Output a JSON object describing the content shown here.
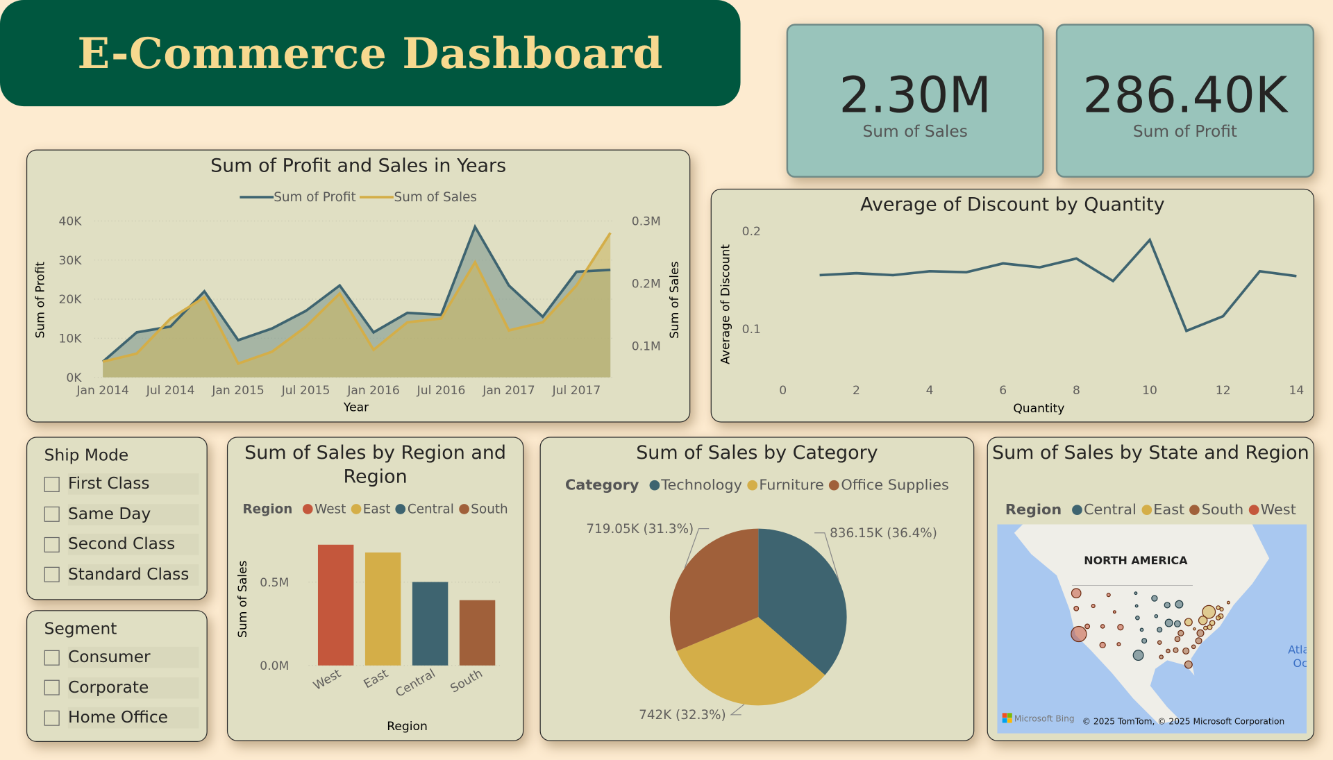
{
  "header": {
    "title": "E-Commerce Dashboard"
  },
  "kpis": [
    {
      "value": "2.30M",
      "label": "Sum of Sales"
    },
    {
      "value": "286.40K",
      "label": "Sum of Profit"
    }
  ],
  "colors": {
    "profit": "#3e6470",
    "sales": "#d4ae48",
    "west": "#c4573c",
    "east": "#d4ae48",
    "central": "#3e6470",
    "south": "#a0603a",
    "technology": "#3e6470",
    "furniture": "#d4ae48",
    "office_supplies": "#a0603a",
    "title_bg": "#00573f",
    "title_text": "#f7d98f",
    "kpi_bg": "#99c4bb"
  },
  "slicers": [
    {
      "title": "Ship Mode",
      "items": [
        "First Class",
        "Same Day",
        "Second Class",
        "Standard Class"
      ]
    },
    {
      "title": "Segment",
      "items": [
        "Consumer",
        "Corporate",
        "Home Office"
      ]
    }
  ],
  "chart_data": [
    {
      "type": "line",
      "title": "Sum of Profit and Sales in Years",
      "xlabel": "Year",
      "ylabel": "Sum of Profit",
      "y2label": "Sum of Sales",
      "legend": [
        "Sum of Profit",
        "Sum of Sales"
      ],
      "legend_position": "top",
      "x": [
        "Jan 2014",
        "Apr 2014",
        "Jul 2014",
        "Oct 2014",
        "Jan 2015",
        "Apr 2015",
        "Jul 2015",
        "Oct 2015",
        "Jan 2016",
        "Apr 2016",
        "Jul 2016",
        "Oct 2016",
        "Jan 2017",
        "Apr 2017",
        "Jul 2017",
        "Oct 2017"
      ],
      "xticks": [
        "Jan 2014",
        "Jul 2014",
        "Jan 2015",
        "Jul 2015",
        "Jan 2016",
        "Jul 2016",
        "Jan 2017",
        "Jul 2017"
      ],
      "yticks": [
        "0K",
        "10K",
        "20K",
        "30K",
        "40K"
      ],
      "y2ticks": [
        "0.1M",
        "0.2M",
        "0.3M"
      ],
      "series": [
        {
          "name": "Sum of Profit",
          "axis": "left",
          "unit": "K",
          "values": [
            4,
            11.5,
            13,
            22,
            9.5,
            12.5,
            17,
            23.5,
            11.5,
            16.5,
            16,
            38.5,
            23.5,
            15.5,
            27,
            27.5
          ]
        },
        {
          "name": "Sum of Sales",
          "axis": "right",
          "unit": "M",
          "values": [
            0.075,
            0.088,
            0.144,
            0.178,
            0.072,
            0.091,
            0.131,
            0.184,
            0.094,
            0.138,
            0.144,
            0.234,
            0.125,
            0.138,
            0.197,
            0.281
          ]
        }
      ],
      "ylim": [
        0,
        40
      ],
      "grid": true
    },
    {
      "type": "line",
      "title": "Average of Discount by Quantity",
      "xlabel": "Quantity",
      "ylabel": "Average of Discount",
      "xticks": [
        "0",
        "2",
        "4",
        "6",
        "8",
        "10",
        "12",
        "14"
      ],
      "yticks": [
        "0.1",
        "0.2"
      ],
      "x": [
        1,
        2,
        3,
        4,
        5,
        6,
        7,
        8,
        9,
        10,
        11,
        12,
        13,
        14
      ],
      "values": [
        0.155,
        0.157,
        0.155,
        0.159,
        0.158,
        0.167,
        0.163,
        0.172,
        0.149,
        0.191,
        0.098,
        0.113,
        0.159,
        0.154
      ]
    },
    {
      "type": "bar",
      "title": "Sum of Sales by Region and Region",
      "xlabel": "Region",
      "ylabel": "Sum of Sales",
      "legend_title": "Region",
      "categories": [
        "West",
        "East",
        "Central",
        "South"
      ],
      "values": [
        0.725,
        0.678,
        0.501,
        0.392
      ],
      "unit": "M",
      "yticks": [
        "0.0M",
        "0.5M"
      ]
    },
    {
      "type": "pie",
      "title": "Sum of Sales by Category",
      "legend_title": "Category",
      "categories": [
        "Technology",
        "Furniture",
        "Office Supplies"
      ],
      "values": [
        836.15,
        742,
        719.05
      ],
      "labels": [
        "836.15K (36.4%)",
        "742K (32.3%)",
        "719.05K (31.3%)"
      ]
    }
  ],
  "map": {
    "title": "Sum of Sales by State and Region",
    "legend_title": "Region",
    "legend": [
      "Central",
      "East",
      "South",
      "West"
    ],
    "label": "NORTH AMERICA",
    "ocean": "Atla Oc",
    "brand": "Microsoft Bing",
    "copyright": "© 2025 TomTom, © 2025 Microsoft Corporation"
  }
}
